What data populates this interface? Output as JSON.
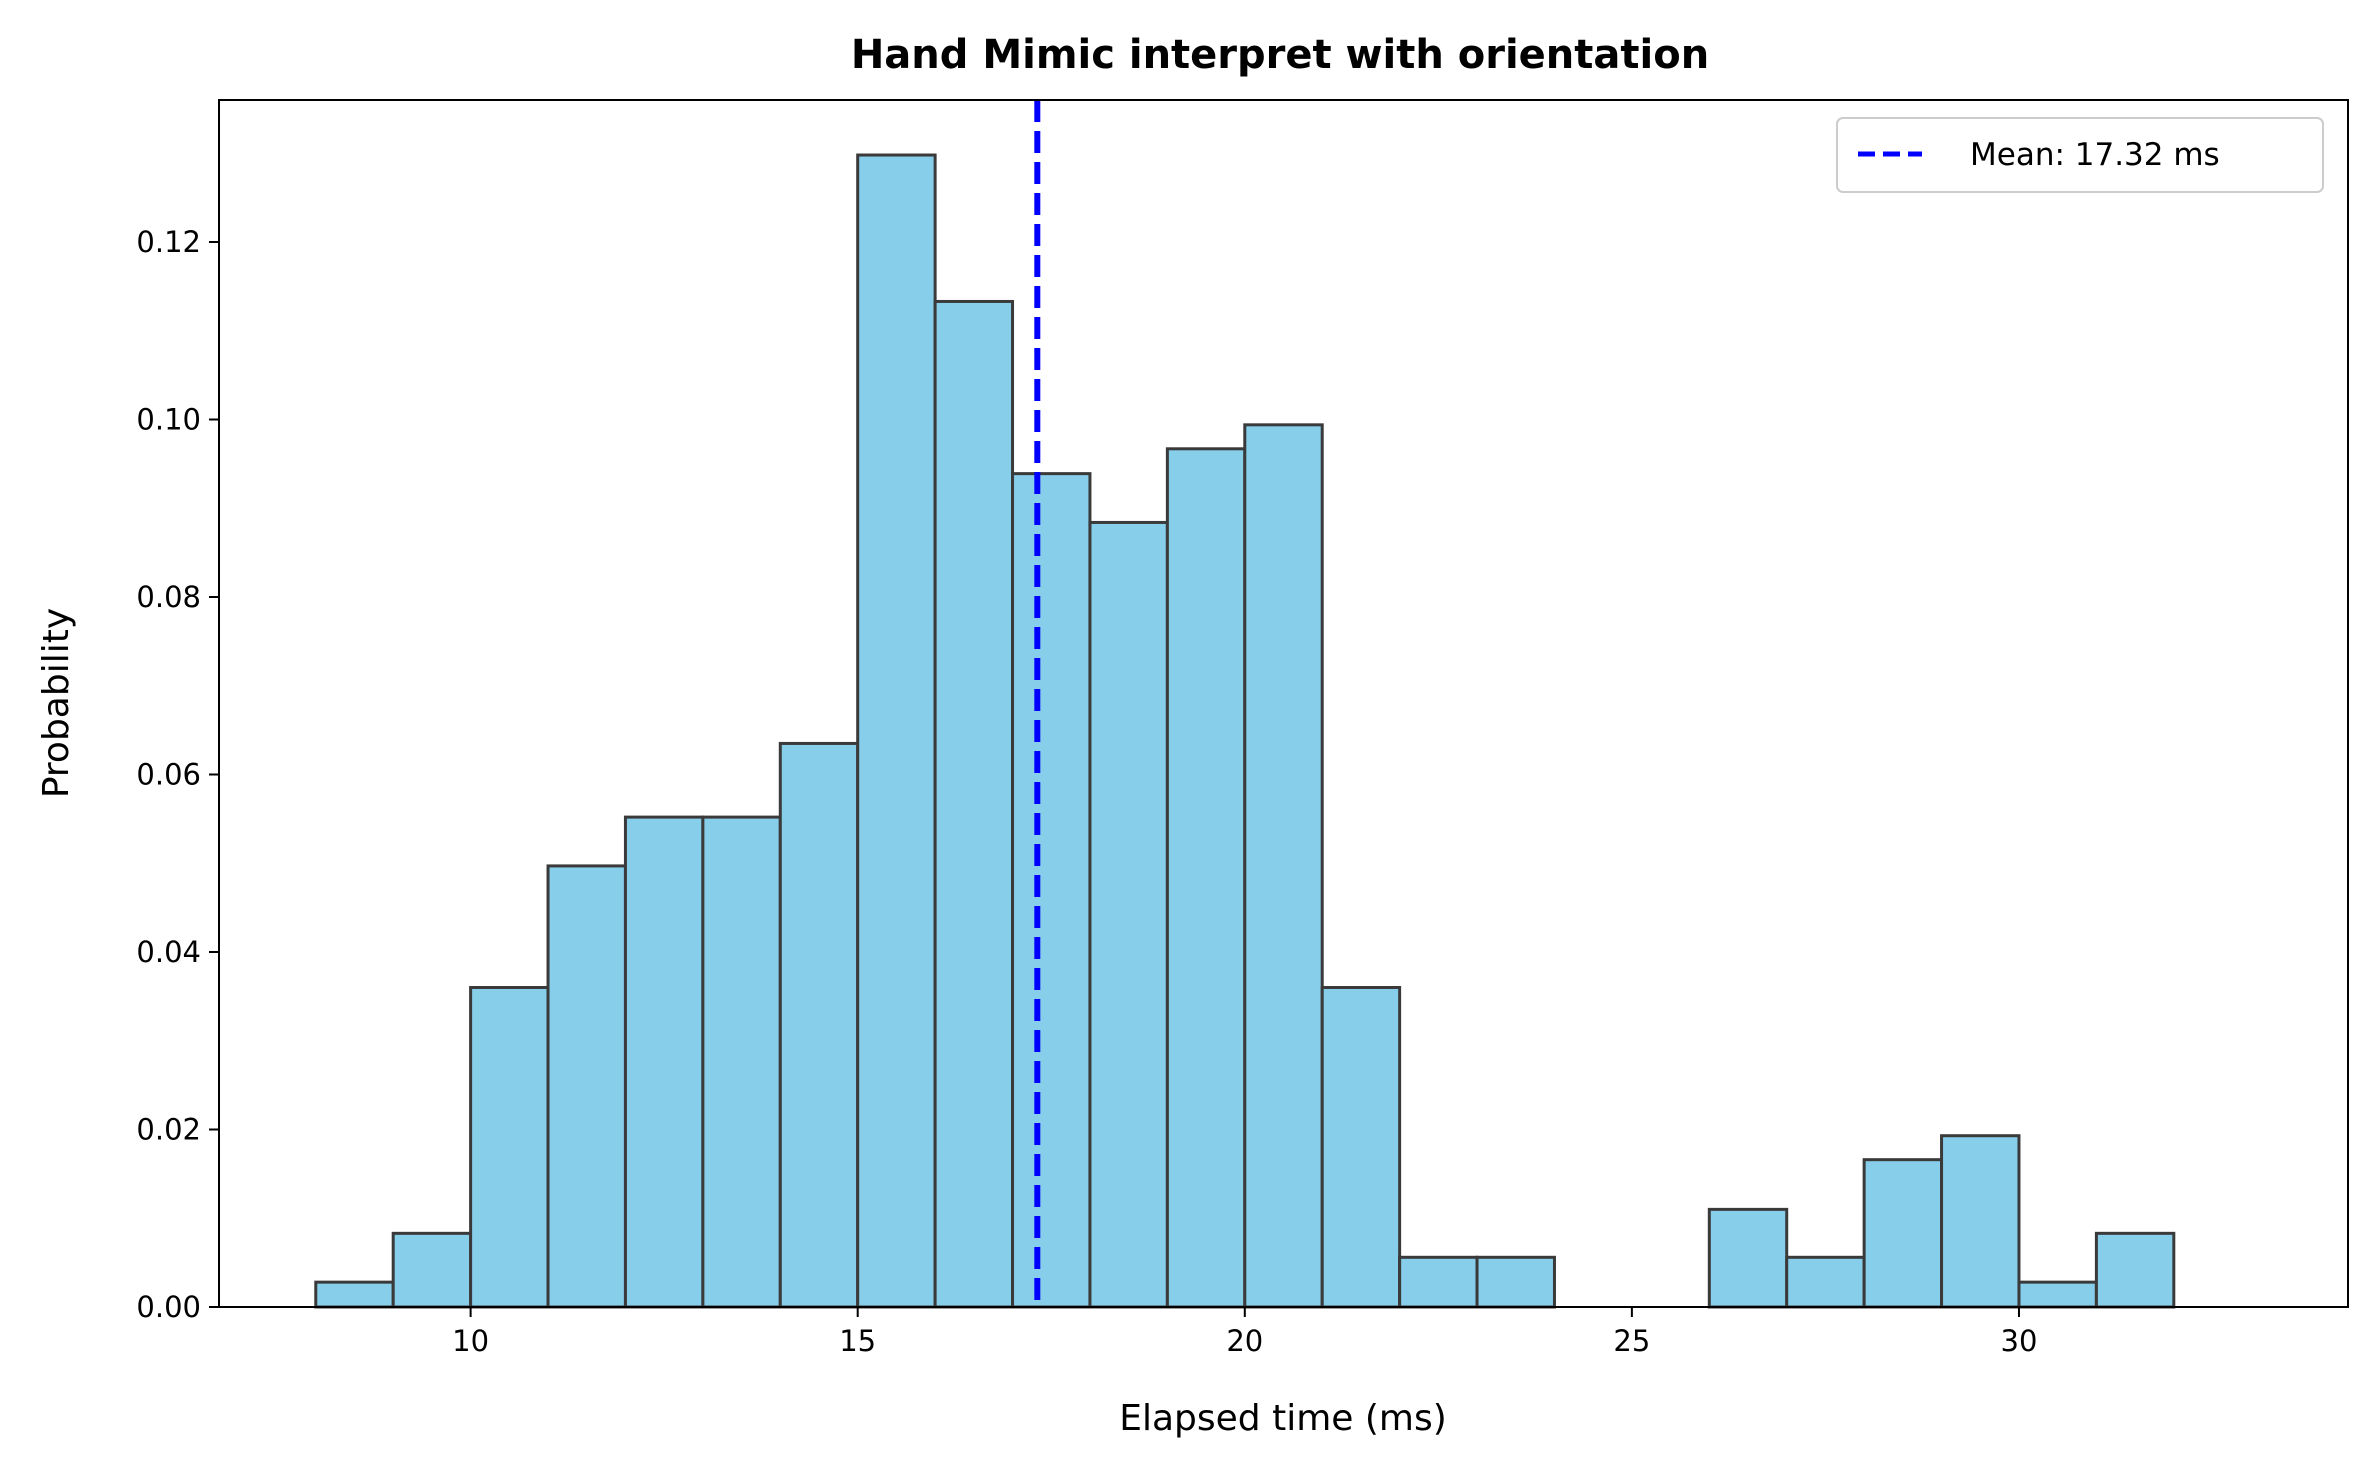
{
  "chart_data": {
    "type": "bar",
    "title": "Hand Mimic interpret with orientation",
    "xlabel": "Elapsed time (ms)",
    "ylabel": "Probability",
    "xlim": [
      6.75,
      34.25
    ],
    "ylim": [
      0,
      0.136
    ],
    "xticks": [
      10,
      15,
      20,
      25,
      30
    ],
    "yticks": [
      0.0,
      0.02,
      0.04,
      0.06,
      0.08,
      0.1,
      0.12
    ],
    "ytick_labels": [
      "0.00",
      "0.02",
      "0.04",
      "0.06",
      "0.08",
      "0.10",
      "0.12"
    ],
    "bin_edges": [
      8,
      9,
      10,
      11,
      12,
      13,
      14,
      15,
      16,
      17,
      18,
      19,
      20,
      21,
      22,
      23,
      24,
      25,
      26,
      27,
      28,
      29,
      30,
      31,
      32,
      33
    ],
    "values": [
      0.0028,
      0.0083,
      0.036,
      0.0497,
      0.0552,
      0.0552,
      0.0635,
      0.1298,
      0.1133,
      0.0939,
      0.0884,
      0.0967,
      0.0994,
      0.036,
      0.0056,
      0.0056,
      0.0,
      0.0,
      0.011,
      0.0056,
      0.0166,
      0.0193,
      0.0028,
      0.0083,
      0.0
    ],
    "bar_color": "#87CEEB",
    "edge_color": "#3a3a3a",
    "mean": 17.32,
    "mean_color": "#0000FF",
    "legend": {
      "label": "Mean: 17.32 ms",
      "position": "top-right"
    },
    "grid": false
  }
}
